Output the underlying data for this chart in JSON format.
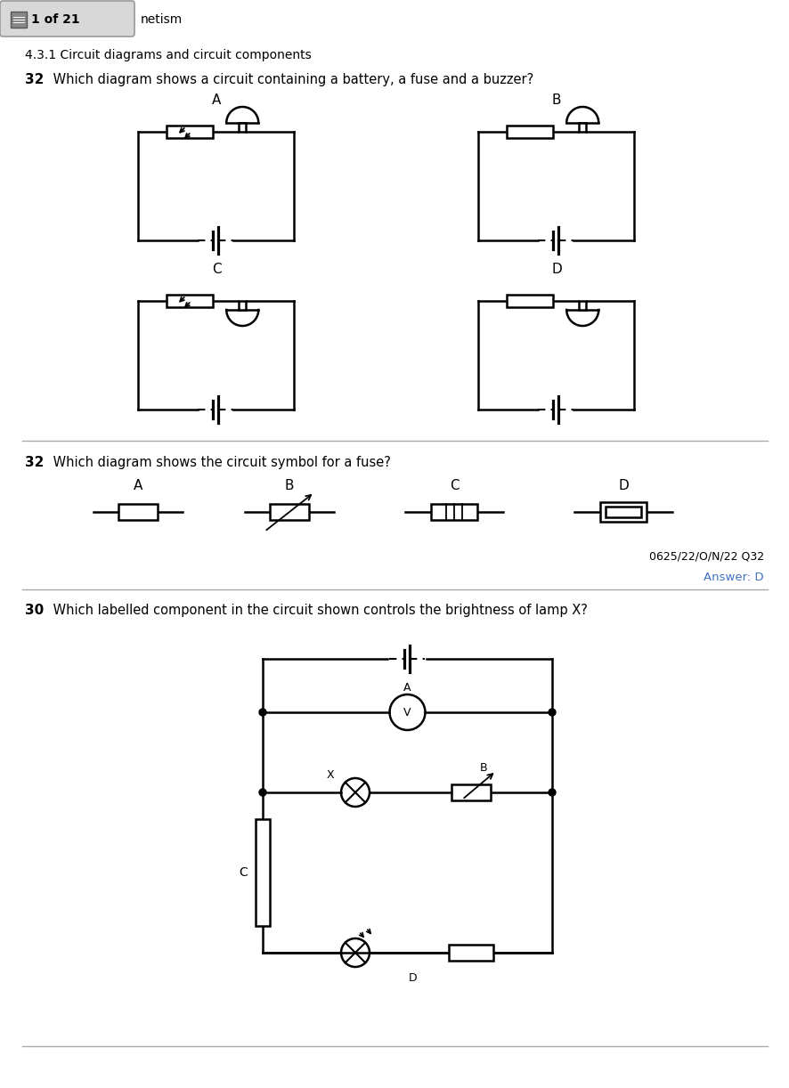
{
  "bg_color": "#ffffff",
  "text_color": "#000000",
  "answer_color": "#4472C4",
  "header_text": "netism",
  "section_text": "4.3.1 Circuit diagrams and circuit components",
  "q1_text": "32  Which diagram shows a circuit containing a battery, a fuse and a buzzer?",
  "q2_text": "32  Which diagram shows the circuit symbol for a fuse?",
  "ref_text": "0625/22/O/N/22 Q32",
  "answer_text": "Answer: D",
  "q3_text": "30  Which labelled component in the circuit shown controls the brightness of lamp X?",
  "lw": 1.5,
  "lw_circuit": 1.8
}
